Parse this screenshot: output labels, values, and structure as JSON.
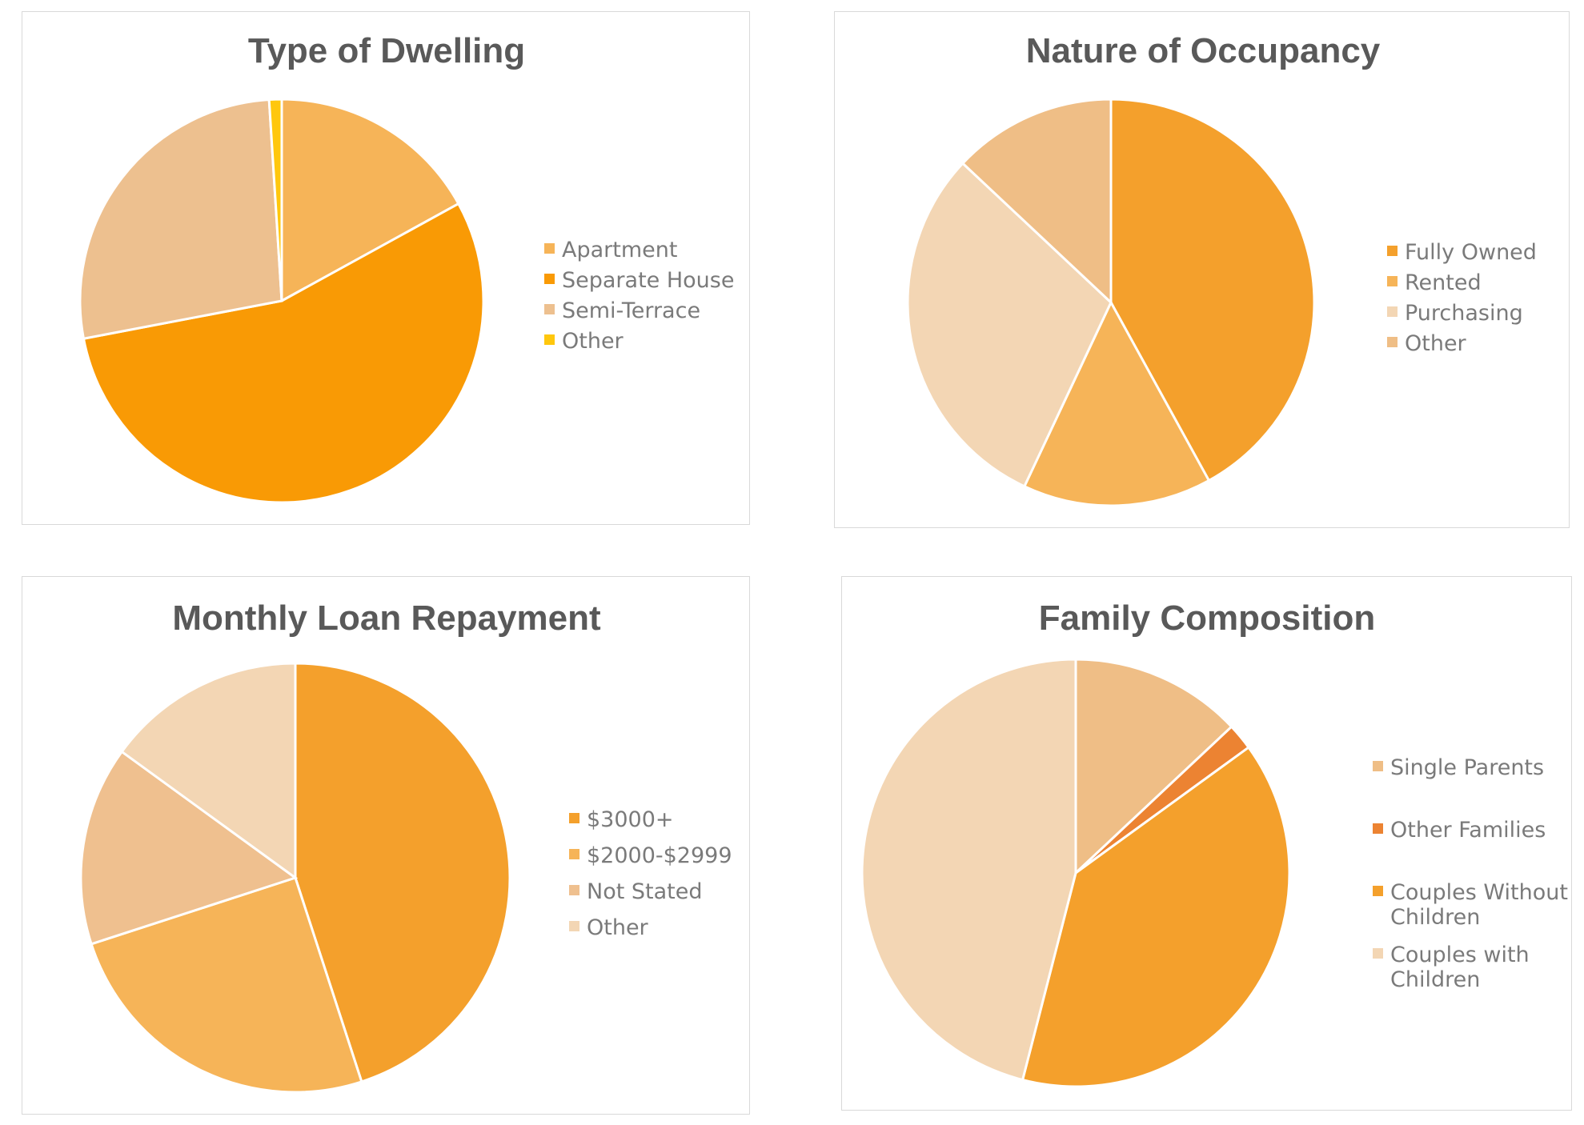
{
  "chart_data": [
    {
      "type": "pie",
      "title": "Type of Dwelling",
      "categories": [
        "Apartment",
        "Separate House",
        "Semi-Terrace",
        "Other"
      ],
      "values": [
        17,
        55,
        27,
        1
      ],
      "colors": [
        "#F6B458",
        "#F99A05",
        "#EDC08F",
        "#FFC70D"
      ],
      "legend": "right"
    },
    {
      "type": "pie",
      "title": "Nature of Occupancy",
      "categories": [
        "Fully Owned",
        "Rented",
        "Purchasing",
        "Other"
      ],
      "values": [
        42,
        15,
        30,
        13
      ],
      "colors": [
        "#F4A02C",
        "#F6B458",
        "#F3D6B4",
        "#EFBE86"
      ],
      "legend": "right"
    },
    {
      "type": "pie",
      "title": "Monthly Loan Repayment",
      "categories": [
        "$3000+",
        "$2000-$2999",
        "Not Stated",
        "Other"
      ],
      "values": [
        45,
        25,
        15,
        15
      ],
      "colors": [
        "#F4A02C",
        "#F6B458",
        "#EFC08F",
        "#F3D6B4"
      ],
      "legend": "right"
    },
    {
      "type": "pie",
      "title": "Family Composition",
      "categories": [
        "Single Parents",
        "Other Families",
        "Couples Without Children",
        "Couples with Children"
      ],
      "legend_lines": [
        [
          "Single Parents"
        ],
        [
          "Other Families"
        ],
        [
          "Couples Without",
          "Children"
        ],
        [
          "Couples with",
          "Children"
        ]
      ],
      "values": [
        13,
        2,
        39,
        46
      ],
      "colors": [
        "#EFBE86",
        "#EC8332",
        "#F4A02C",
        "#F3D6B4"
      ],
      "legend": "right"
    }
  ]
}
